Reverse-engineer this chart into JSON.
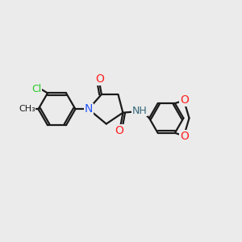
{
  "background_color": "#ebebeb",
  "bond_color": "#1a1a1a",
  "line_width": 1.6,
  "figsize": [
    3.0,
    3.0
  ],
  "dpi": 100,
  "colors": {
    "Cl": "#22cc22",
    "N": "#2255ff",
    "O": "#ff2222",
    "C": "#1a1a1a",
    "NH": "#336677"
  }
}
